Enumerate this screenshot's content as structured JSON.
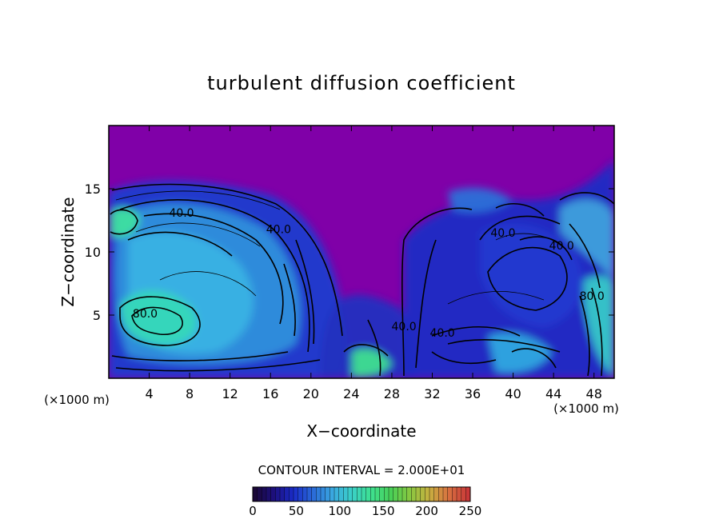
{
  "chart_data": {
    "type": "heatmap",
    "title": "turbulent diffusion coefficient",
    "xlabel": "X−coordinate",
    "ylabel": "Z−coordinate",
    "x_unit_left": "(×1000 m)",
    "x_unit_right": "(×1000 m)",
    "xlim": [
      0,
      50
    ],
    "ylim": [
      0,
      20
    ],
    "x_ticks": [
      4,
      8,
      12,
      16,
      20,
      24,
      28,
      32,
      36,
      40,
      44,
      48
    ],
    "y_ticks": [
      5,
      10,
      15
    ],
    "contour_interval_text": "CONTOUR INTERVAL = 2.000E+01",
    "contour_labels": [
      {
        "text": "40.0",
        "x": 7.2,
        "y": 12.8
      },
      {
        "text": "40.0",
        "x": 16.8,
        "y": 11.5
      },
      {
        "text": "80.0",
        "x": 3.6,
        "y": 4.8
      },
      {
        "text": "40.0",
        "x": 39.0,
        "y": 11.2
      },
      {
        "text": "40.0",
        "x": 44.8,
        "y": 10.2
      },
      {
        "text": "80.0",
        "x": 47.8,
        "y": 6.2
      },
      {
        "text": "40.0",
        "x": 29.2,
        "y": 3.8
      },
      {
        "text": "40.0",
        "x": 33.0,
        "y": 3.3
      }
    ],
    "colorbar": {
      "min": 0,
      "max": 250,
      "ticks": [
        0,
        50,
        100,
        150,
        200,
        250
      ],
      "colors": [
        "#1a0838",
        "#1d1080",
        "#1a2cc8",
        "#2a6ad8",
        "#3aa8e0",
        "#3ad0c8",
        "#3ee090",
        "#48d058",
        "#88c840",
        "#c8b040",
        "#d87040",
        "#c83838"
      ]
    },
    "background_color": "#8000a8",
    "cells": []
  }
}
